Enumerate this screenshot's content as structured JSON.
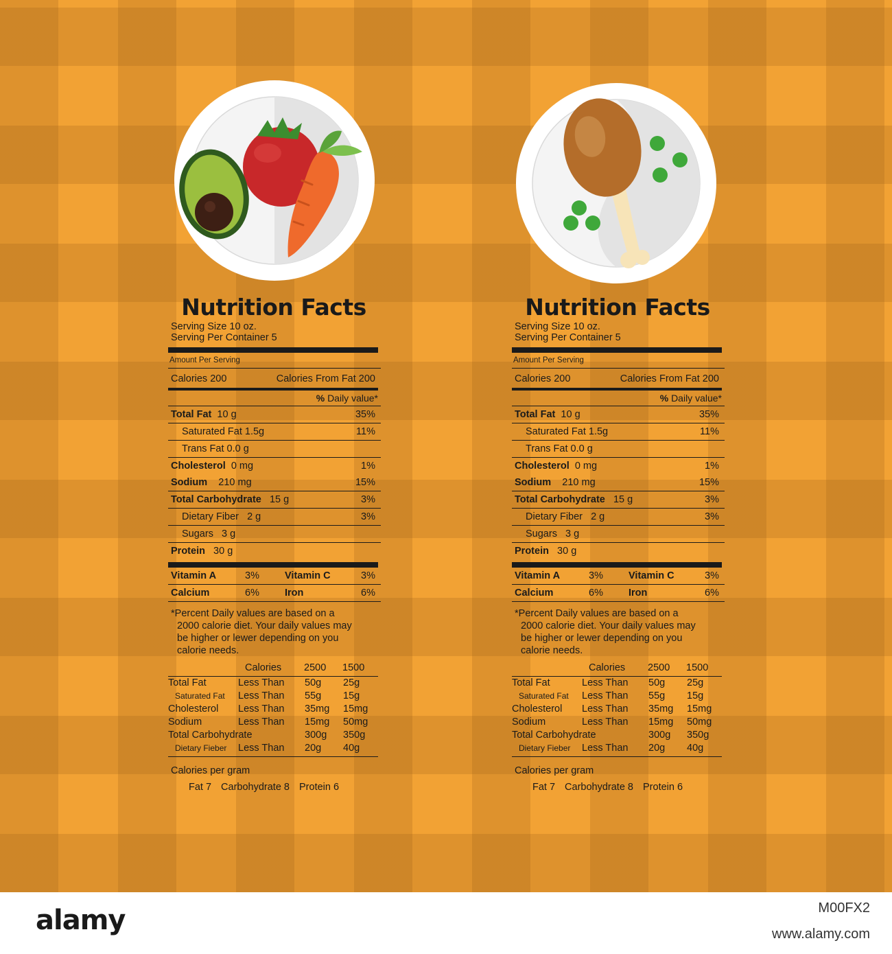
{
  "colors": {
    "background": "#f2a234",
    "plaid_dark": "#c9832a",
    "text": "#1a1a1a",
    "plate": "#ffffff"
  },
  "left_plate": {
    "items": [
      "avocado-icon",
      "tomato-icon",
      "carrot-icon"
    ]
  },
  "right_plate": {
    "items": [
      "chicken-leg-icon",
      "peas-icon"
    ]
  },
  "label": {
    "title": "Nutrition Facts",
    "serving_size": "Serving Size 10 oz.",
    "serving_per_container": "Serving Per Container 5",
    "amount_per_serving": "Amount Per Serving",
    "calories": "Calories 200",
    "calories_from_fat": "Calories From Fat 200",
    "daily_value_symbol": "%",
    "daily_value_label": "Daily value*",
    "nutrients": [
      {
        "name": "Total Fat",
        "amount": "10 g",
        "dv": "35%"
      },
      {
        "name": "Saturated Fat 1.5g",
        "amount": "",
        "dv": "11%"
      },
      {
        "name": "Trans Fat 0.0 g",
        "amount": "",
        "dv": ""
      },
      {
        "name": "Cholesterol",
        "amount": "0 mg",
        "dv": "1%"
      },
      {
        "name": "Sodium",
        "amount": "210 mg",
        "dv": "15%"
      },
      {
        "name": "Total Carbohydrate",
        "amount": "15 g",
        "dv": "3%"
      },
      {
        "name": "Dietary Fiber",
        "amount": "2 g",
        "dv": "3%"
      },
      {
        "name": "Sugars",
        "amount": "3 g",
        "dv": ""
      },
      {
        "name": "Protein",
        "amount": "30 g",
        "dv": ""
      }
    ],
    "vitamins": [
      {
        "a_name": "Vitamin A",
        "a_val": "3%",
        "b_name": "Vitamin C",
        "b_val": "3%"
      },
      {
        "a_name": "Calcium",
        "a_val": "6%",
        "b_name": "Iron",
        "b_val": "6%"
      }
    ],
    "footnote_line1": "*Percent Daily values are based on a",
    "footnote_line2": "2000 calorie diet. Your daily values may",
    "footnote_line3": "be higher or lewer depending on you",
    "footnote_line4": "calorie needs.",
    "dv_header": {
      "calories": "Calories",
      "c2500": "2500",
      "c1500": "1500"
    },
    "dv_rows": [
      {
        "name": "Total Fat",
        "qual": "Less Than",
        "v2500": "50g",
        "v1500": "25g"
      },
      {
        "name": "Saturated Fat",
        "qual": "Less Than",
        "v2500": "55g",
        "v1500": "15g"
      },
      {
        "name": "Cholesterol",
        "qual": "Less Than",
        "v2500": "35mg",
        "v1500": "15mg"
      },
      {
        "name": "Sodium",
        "qual": "Less Than",
        "v2500": "15mg",
        "v1500": "50mg"
      },
      {
        "name": "Total Carbohydrate",
        "qual": "",
        "v2500": "300g",
        "v1500": "350g"
      },
      {
        "name": "Dietary Fieber",
        "qual": "Less Than",
        "v2500": "20g",
        "v1500": "40g"
      }
    ],
    "calories_per_gram": "Calories per gram",
    "cpg_fat": "Fat 7",
    "cpg_carb": "Carbohydrate 8",
    "cpg_protein": "Protein 6"
  },
  "footer": {
    "logo": "alamy",
    "image_id": "M00FX2",
    "url": "www.alamy.com"
  }
}
